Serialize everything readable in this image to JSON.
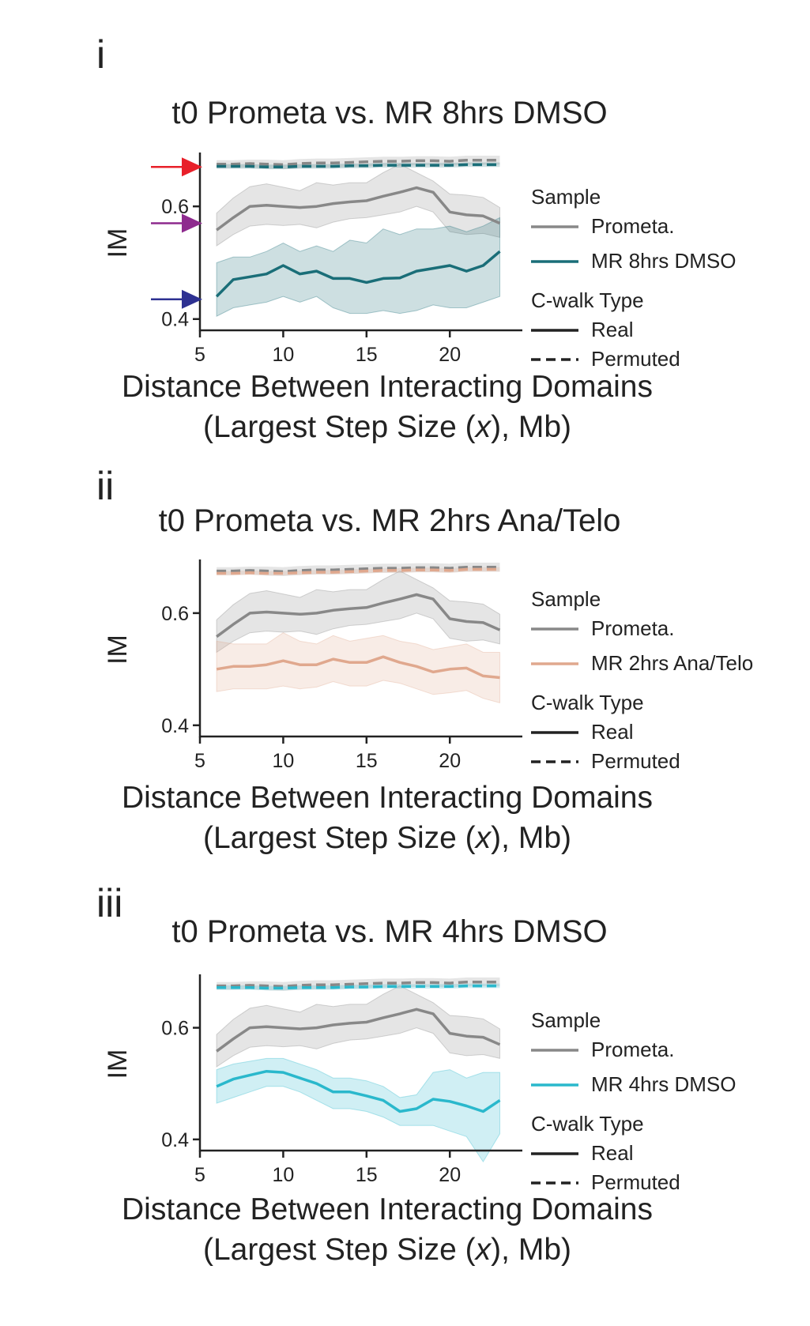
{
  "chart_data": [
    {
      "type": "line",
      "panel_label": "i",
      "title": "t0 Prometa vs. MR 8hrs DMSO",
      "xlabel_line1": "Distance Between Interacting Domains",
      "xlabel_line2": [
        "(Largest Step Size (",
        "x",
        "), Mb)"
      ],
      "ylabel": "IM",
      "xlim": [
        5,
        23.5
      ],
      "ylim": [
        0.38,
        0.69
      ],
      "xticks": [
        5,
        10,
        15,
        20
      ],
      "xtick_labels": [
        "5",
        "10",
        "15",
        "20"
      ],
      "yticks": [
        0.4,
        0.6
      ],
      "ytick_labels": [
        "0.4",
        "0.6"
      ],
      "legend": {
        "sample_title": "Sample",
        "type_title": "C-walk Type",
        "real_label": "Real",
        "permuted_label": "Permuted"
      },
      "arrows": [
        {
          "y": 0.67,
          "color": "#e8202a"
        },
        {
          "y": 0.57,
          "color": "#8e2a8e"
        },
        {
          "y": 0.435,
          "color": "#2e3192"
        }
      ],
      "x": [
        6,
        7,
        8,
        9,
        10,
        11,
        12,
        13,
        14,
        15,
        16,
        17,
        18,
        19,
        20,
        21,
        22,
        23
      ],
      "series": [
        {
          "name": "Prometa.",
          "color": "#888888",
          "real": [
            0.558,
            0.58,
            0.6,
            0.602,
            0.6,
            0.598,
            0.6,
            0.605,
            0.608,
            0.61,
            0.618,
            0.625,
            0.633,
            0.625,
            0.59,
            0.585,
            0.583,
            0.57
          ],
          "real_upper": [
            0.588,
            0.615,
            0.635,
            0.64,
            0.634,
            0.628,
            0.642,
            0.638,
            0.642,
            0.642,
            0.66,
            0.675,
            0.66,
            0.645,
            0.622,
            0.62,
            0.616,
            0.598
          ],
          "real_lower": [
            0.53,
            0.55,
            0.565,
            0.568,
            0.566,
            0.568,
            0.562,
            0.572,
            0.578,
            0.58,
            0.585,
            0.59,
            0.6,
            0.59,
            0.555,
            0.55,
            0.552,
            0.545
          ],
          "permuted": [
            0.675,
            0.675,
            0.676,
            0.675,
            0.674,
            0.676,
            0.677,
            0.677,
            0.678,
            0.679,
            0.68,
            0.68,
            0.681,
            0.681,
            0.68,
            0.682,
            0.682,
            0.682
          ],
          "permuted_upper": [
            0.682,
            0.682,
            0.683,
            0.683,
            0.682,
            0.684,
            0.685,
            0.685,
            0.686,
            0.687,
            0.688,
            0.688,
            0.689,
            0.689,
            0.688,
            0.69,
            0.69,
            0.69
          ],
          "permuted_lower": [
            0.668,
            0.668,
            0.669,
            0.667,
            0.666,
            0.668,
            0.669,
            0.669,
            0.67,
            0.671,
            0.672,
            0.672,
            0.673,
            0.673,
            0.672,
            0.674,
            0.674,
            0.674
          ]
        },
        {
          "name": "MR 8hrs DMSO",
          "color": "#1a6e78",
          "real": [
            0.44,
            0.47,
            0.475,
            0.48,
            0.495,
            0.48,
            0.485,
            0.472,
            0.472,
            0.465,
            0.472,
            0.473,
            0.485,
            0.49,
            0.495,
            0.485,
            0.495,
            0.52
          ],
          "real_upper": [
            0.5,
            0.51,
            0.51,
            0.52,
            0.535,
            0.52,
            0.53,
            0.52,
            0.54,
            0.535,
            0.56,
            0.55,
            0.56,
            0.56,
            0.565,
            0.555,
            0.565,
            0.58
          ],
          "real_lower": [
            0.405,
            0.42,
            0.425,
            0.43,
            0.44,
            0.43,
            0.44,
            0.42,
            0.41,
            0.41,
            0.415,
            0.41,
            0.415,
            0.425,
            0.42,
            0.42,
            0.43,
            0.44
          ],
          "permuted": [
            0.671,
            0.671,
            0.671,
            0.67,
            0.67,
            0.671,
            0.671,
            0.671,
            0.672,
            0.672,
            0.673,
            0.673,
            0.673,
            0.673,
            0.673,
            0.674,
            0.674,
            0.674
          ],
          "permuted_upper": [
            0.675,
            0.675,
            0.675,
            0.674,
            0.674,
            0.675,
            0.675,
            0.675,
            0.676,
            0.676,
            0.677,
            0.677,
            0.677,
            0.677,
            0.677,
            0.678,
            0.678,
            0.678
          ],
          "permuted_lower": [
            0.667,
            0.667,
            0.667,
            0.666,
            0.666,
            0.667,
            0.667,
            0.667,
            0.668,
            0.668,
            0.669,
            0.669,
            0.669,
            0.669,
            0.669,
            0.67,
            0.67,
            0.67
          ]
        }
      ]
    },
    {
      "type": "line",
      "panel_label": "ii",
      "title": "t0 Prometa vs. MR 2hrs Ana/Telo",
      "xlabel_line1": "Distance Between Interacting Domains",
      "xlabel_line2": [
        "(Largest Step Size (",
        "x",
        "), Mb)"
      ],
      "ylabel": "IM",
      "xlim": [
        5,
        23.5
      ],
      "ylim": [
        0.38,
        0.69
      ],
      "xticks": [
        5,
        10,
        15,
        20
      ],
      "xtick_labels": [
        "5",
        "10",
        "15",
        "20"
      ],
      "yticks": [
        0.4,
        0.6
      ],
      "ytick_labels": [
        "0.4",
        "0.6"
      ],
      "legend": {
        "sample_title": "Sample",
        "type_title": "C-walk Type",
        "real_label": "Real",
        "permuted_label": "Permuted"
      },
      "arrows": [],
      "x": [
        6,
        7,
        8,
        9,
        10,
        11,
        12,
        13,
        14,
        15,
        16,
        17,
        18,
        19,
        20,
        21,
        22,
        23
      ],
      "series": [
        {
          "name": "Prometa.",
          "color": "#888888",
          "real": [
            0.558,
            0.58,
            0.6,
            0.602,
            0.6,
            0.598,
            0.6,
            0.605,
            0.608,
            0.61,
            0.618,
            0.625,
            0.633,
            0.625,
            0.59,
            0.585,
            0.583,
            0.57
          ],
          "real_upper": [
            0.588,
            0.615,
            0.635,
            0.64,
            0.634,
            0.628,
            0.642,
            0.638,
            0.642,
            0.642,
            0.66,
            0.675,
            0.66,
            0.645,
            0.622,
            0.62,
            0.616,
            0.598
          ],
          "real_lower": [
            0.53,
            0.55,
            0.565,
            0.568,
            0.566,
            0.568,
            0.562,
            0.572,
            0.578,
            0.58,
            0.585,
            0.59,
            0.6,
            0.59,
            0.555,
            0.55,
            0.552,
            0.545
          ],
          "permuted": [
            0.675,
            0.675,
            0.676,
            0.675,
            0.674,
            0.676,
            0.677,
            0.677,
            0.678,
            0.679,
            0.68,
            0.68,
            0.681,
            0.681,
            0.68,
            0.682,
            0.682,
            0.682
          ],
          "permuted_upper": [
            0.682,
            0.682,
            0.683,
            0.683,
            0.682,
            0.684,
            0.685,
            0.685,
            0.686,
            0.687,
            0.688,
            0.688,
            0.689,
            0.689,
            0.688,
            0.69,
            0.69,
            0.69
          ],
          "permuted_lower": [
            0.668,
            0.668,
            0.669,
            0.667,
            0.666,
            0.668,
            0.669,
            0.669,
            0.67,
            0.671,
            0.672,
            0.672,
            0.673,
            0.673,
            0.672,
            0.674,
            0.674,
            0.674
          ]
        },
        {
          "name": "MR 2hrs Ana/Telo",
          "color": "#e0a88e",
          "real": [
            0.5,
            0.505,
            0.505,
            0.508,
            0.515,
            0.508,
            0.508,
            0.518,
            0.512,
            0.512,
            0.522,
            0.512,
            0.505,
            0.495,
            0.5,
            0.502,
            0.488,
            0.485
          ],
          "real_upper": [
            0.55,
            0.545,
            0.545,
            0.545,
            0.565,
            0.55,
            0.545,
            0.56,
            0.55,
            0.555,
            0.56,
            0.55,
            0.545,
            0.535,
            0.54,
            0.545,
            0.53,
            0.53
          ],
          "real_lower": [
            0.46,
            0.465,
            0.465,
            0.465,
            0.47,
            0.465,
            0.468,
            0.478,
            0.47,
            0.47,
            0.48,
            0.475,
            0.465,
            0.455,
            0.458,
            0.462,
            0.448,
            0.44
          ],
          "permuted": [
            0.671,
            0.671,
            0.672,
            0.671,
            0.671,
            0.672,
            0.673,
            0.673,
            0.674,
            0.675,
            0.676,
            0.676,
            0.677,
            0.677,
            0.676,
            0.678,
            0.678,
            0.678
          ],
          "permuted_upper": [
            0.675,
            0.675,
            0.676,
            0.675,
            0.675,
            0.676,
            0.677,
            0.677,
            0.678,
            0.679,
            0.68,
            0.68,
            0.681,
            0.681,
            0.68,
            0.682,
            0.682,
            0.682
          ],
          "permuted_lower": [
            0.667,
            0.667,
            0.668,
            0.667,
            0.667,
            0.668,
            0.669,
            0.669,
            0.67,
            0.671,
            0.672,
            0.672,
            0.673,
            0.673,
            0.672,
            0.674,
            0.674,
            0.674
          ]
        }
      ]
    },
    {
      "type": "line",
      "panel_label": "iii",
      "title": "t0 Prometa vs. MR 4hrs DMSO",
      "xlabel_line1": "Distance Between Interacting Domains",
      "xlabel_line2": [
        "(Largest Step Size (",
        "x",
        "), Mb)"
      ],
      "ylabel": "IM",
      "xlim": [
        5,
        23.5
      ],
      "ylim": [
        0.38,
        0.69
      ],
      "xticks": [
        5,
        10,
        15,
        20
      ],
      "xtick_labels": [
        "5",
        "10",
        "15",
        "20"
      ],
      "yticks": [
        0.4,
        0.6
      ],
      "ytick_labels": [
        "0.4",
        "0.6"
      ],
      "legend": {
        "sample_title": "Sample",
        "type_title": "C-walk Type",
        "real_label": "Real",
        "permuted_label": "Permuted"
      },
      "arrows": [],
      "x": [
        6,
        7,
        8,
        9,
        10,
        11,
        12,
        13,
        14,
        15,
        16,
        17,
        18,
        19,
        20,
        21,
        22,
        23
      ],
      "series": [
        {
          "name": "Prometa.",
          "color": "#888888",
          "real": [
            0.558,
            0.58,
            0.6,
            0.602,
            0.6,
            0.598,
            0.6,
            0.605,
            0.608,
            0.61,
            0.618,
            0.625,
            0.633,
            0.625,
            0.59,
            0.585,
            0.583,
            0.57
          ],
          "real_upper": [
            0.588,
            0.615,
            0.635,
            0.64,
            0.634,
            0.628,
            0.642,
            0.638,
            0.642,
            0.642,
            0.66,
            0.675,
            0.66,
            0.645,
            0.622,
            0.62,
            0.616,
            0.598
          ],
          "real_lower": [
            0.53,
            0.55,
            0.565,
            0.568,
            0.566,
            0.568,
            0.562,
            0.572,
            0.578,
            0.58,
            0.585,
            0.59,
            0.6,
            0.59,
            0.555,
            0.55,
            0.552,
            0.545
          ],
          "permuted": [
            0.675,
            0.675,
            0.676,
            0.675,
            0.674,
            0.676,
            0.677,
            0.677,
            0.678,
            0.679,
            0.68,
            0.68,
            0.681,
            0.681,
            0.68,
            0.682,
            0.682,
            0.682
          ],
          "permuted_upper": [
            0.682,
            0.682,
            0.683,
            0.683,
            0.682,
            0.684,
            0.685,
            0.685,
            0.686,
            0.687,
            0.688,
            0.688,
            0.689,
            0.689,
            0.688,
            0.69,
            0.69,
            0.69
          ],
          "permuted_lower": [
            0.668,
            0.668,
            0.669,
            0.667,
            0.666,
            0.668,
            0.669,
            0.669,
            0.67,
            0.671,
            0.672,
            0.672,
            0.673,
            0.673,
            0.672,
            0.674,
            0.674,
            0.674
          ]
        },
        {
          "name": "MR 4hrs DMSO",
          "color": "#2ab8cc",
          "real": [
            0.495,
            0.508,
            0.515,
            0.522,
            0.52,
            0.51,
            0.5,
            0.485,
            0.485,
            0.478,
            0.47,
            0.45,
            0.455,
            0.472,
            0.468,
            0.46,
            0.45,
            0.47
          ],
          "real_upper": [
            0.525,
            0.535,
            0.54,
            0.545,
            0.545,
            0.535,
            0.525,
            0.51,
            0.51,
            0.505,
            0.495,
            0.475,
            0.48,
            0.52,
            0.525,
            0.51,
            0.52,
            0.52
          ],
          "real_lower": [
            0.465,
            0.475,
            0.485,
            0.495,
            0.495,
            0.485,
            0.47,
            0.455,
            0.455,
            0.45,
            0.44,
            0.425,
            0.425,
            0.425,
            0.415,
            0.405,
            0.36,
            0.41
          ],
          "permuted": [
            0.672,
            0.672,
            0.672,
            0.671,
            0.671,
            0.672,
            0.672,
            0.672,
            0.673,
            0.673,
            0.674,
            0.674,
            0.674,
            0.674,
            0.674,
            0.675,
            0.675,
            0.675
          ],
          "permuted_upper": [
            0.676,
            0.676,
            0.676,
            0.675,
            0.675,
            0.676,
            0.676,
            0.676,
            0.677,
            0.677,
            0.678,
            0.678,
            0.678,
            0.678,
            0.678,
            0.679,
            0.679,
            0.679
          ],
          "permuted_lower": [
            0.668,
            0.668,
            0.668,
            0.667,
            0.667,
            0.668,
            0.668,
            0.668,
            0.669,
            0.669,
            0.67,
            0.67,
            0.67,
            0.67,
            0.67,
            0.671,
            0.671,
            0.671
          ]
        }
      ]
    }
  ]
}
